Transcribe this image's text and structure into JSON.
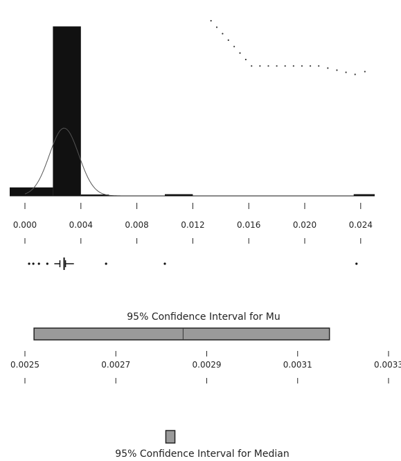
{
  "chart_data": [
    {
      "type": "bar",
      "xlim": [
        0.0,
        0.025
      ],
      "ylim": [
        0,
        62
      ],
      "x_ticks": [
        "0.000",
        "0.004",
        "0.008",
        "0.012",
        "0.016",
        "0.020",
        "0.024"
      ],
      "bins": [
        {
          "x0": 0.0,
          "x1": 0.002,
          "count": 3
        },
        {
          "x0": 0.002,
          "x1": 0.004,
          "count": 60
        },
        {
          "x0": 0.004,
          "x1": 0.006,
          "count": 0.5
        },
        {
          "x0": 0.01,
          "x1": 0.012,
          "count": 0.6
        },
        {
          "x0": 0.0235,
          "x1": 0.025,
          "count": 0.6
        }
      ],
      "normal_curve": {
        "mu": 0.0028,
        "sigma": 0.00105,
        "peak": 24
      },
      "colors": {
        "bar": "#111111",
        "curve": "#555555"
      }
    },
    {
      "type": "line",
      "style": "dotted",
      "x": [
        0.0133,
        0.0162,
        0.021,
        0.0236,
        0.025
      ],
      "y": [
        62,
        46,
        46,
        43,
        45
      ]
    },
    {
      "type": "boxplot",
      "x_ticks": [
        "0.000",
        "0.004",
        "0.008",
        "0.012",
        "0.016",
        "0.020",
        "0.024"
      ],
      "whisker_low": 0.0021,
      "box_low": 0.0025,
      "median": 0.0028,
      "box_high": 0.0029,
      "whisker_high": 0.0035,
      "outliers": [
        0.0003,
        0.0006,
        0.001,
        0.0016,
        0.0058,
        0.01,
        0.0237
      ]
    },
    {
      "type": "interval",
      "title": "95% Confidence Interval for Mu",
      "x_ticks": [
        "0.0025",
        "0.0027",
        "0.0029",
        "0.0031",
        "0.0033"
      ],
      "xlim": [
        0.0025,
        0.0033
      ],
      "low": 0.00252,
      "high": 0.00317,
      "estimate": 0.002848,
      "colors": {
        "fill": "#9a9a9a",
        "edge": "#222222"
      }
    },
    {
      "type": "interval",
      "title": "95% Confidence Interval for Median",
      "xlim": [
        0.0025,
        0.0033
      ],
      "low": 0.00281,
      "high": 0.00283,
      "colors": {
        "fill": "#9a9a9a",
        "edge": "#222222"
      }
    }
  ]
}
